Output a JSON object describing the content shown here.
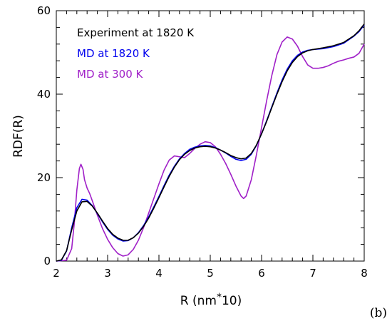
{
  "chart_data": {
    "type": "line",
    "xlabel": "R (nm",
    "xlabel_sup": "*",
    "xlabel_tail": "10)",
    "ylabel": "RDF(R)",
    "xlim": [
      2,
      8
    ],
    "ylim": [
      0,
      60
    ],
    "x_ticks": [
      2,
      3,
      4,
      5,
      6,
      7,
      8
    ],
    "y_ticks": [
      0,
      20,
      40,
      60
    ],
    "x_tick_labels": [
      "2",
      "3",
      "4",
      "5",
      "6",
      "7",
      "8"
    ],
    "y_tick_labels": [
      "0",
      "20",
      "40",
      "60"
    ],
    "grid": false,
    "legend_position": "top-left",
    "panel_label": "(b)",
    "series": [
      {
        "name": "Experiment at 1820 K",
        "color": "#000000",
        "points": [
          [
            2.0,
            0
          ],
          [
            2.1,
            0.3
          ],
          [
            2.2,
            2.5
          ],
          [
            2.3,
            7.5
          ],
          [
            2.4,
            12
          ],
          [
            2.5,
            14.2
          ],
          [
            2.6,
            14.3
          ],
          [
            2.7,
            13.2
          ],
          [
            2.8,
            11.5
          ],
          [
            2.9,
            9.6
          ],
          [
            3.0,
            7.8
          ],
          [
            3.1,
            6.4
          ],
          [
            3.2,
            5.5
          ],
          [
            3.3,
            5.0
          ],
          [
            3.4,
            5.0
          ],
          [
            3.5,
            5.6
          ],
          [
            3.6,
            6.7
          ],
          [
            3.7,
            8.3
          ],
          [
            3.8,
            10.3
          ],
          [
            3.9,
            12.7
          ],
          [
            4.0,
            15.2
          ],
          [
            4.1,
            17.8
          ],
          [
            4.2,
            20.3
          ],
          [
            4.3,
            22.5
          ],
          [
            4.4,
            24.3
          ],
          [
            4.5,
            25.6
          ],
          [
            4.6,
            26.5
          ],
          [
            4.7,
            27.1
          ],
          [
            4.8,
            27.4
          ],
          [
            4.9,
            27.5
          ],
          [
            5.0,
            27.4
          ],
          [
            5.1,
            27.1
          ],
          [
            5.2,
            26.6
          ],
          [
            5.3,
            26.0
          ],
          [
            5.4,
            25.3
          ],
          [
            5.5,
            24.8
          ],
          [
            5.6,
            24.5
          ],
          [
            5.7,
            24.7
          ],
          [
            5.8,
            25.8
          ],
          [
            5.9,
            27.8
          ],
          [
            6.0,
            30.5
          ],
          [
            6.1,
            33.5
          ],
          [
            6.2,
            36.8
          ],
          [
            6.3,
            40.0
          ],
          [
            6.4,
            43.0
          ],
          [
            6.5,
            45.6
          ],
          [
            6.6,
            47.6
          ],
          [
            6.7,
            49.0
          ],
          [
            6.8,
            49.9
          ],
          [
            6.9,
            50.4
          ],
          [
            7.0,
            50.7
          ],
          [
            7.2,
            51.1
          ],
          [
            7.4,
            51.6
          ],
          [
            7.6,
            52.4
          ],
          [
            7.8,
            54.0
          ],
          [
            7.9,
            55.2
          ],
          [
            8.0,
            56.8
          ]
        ]
      },
      {
        "name": "MD at 1820 K",
        "color": "#0000ee",
        "points": [
          [
            2.0,
            0
          ],
          [
            2.1,
            0.2
          ],
          [
            2.2,
            2.4
          ],
          [
            2.3,
            8.0
          ],
          [
            2.4,
            12.8
          ],
          [
            2.5,
            14.8
          ],
          [
            2.6,
            14.6
          ],
          [
            2.7,
            13.3
          ],
          [
            2.8,
            11.4
          ],
          [
            2.9,
            9.4
          ],
          [
            3.0,
            7.6
          ],
          [
            3.1,
            6.2
          ],
          [
            3.2,
            5.3
          ],
          [
            3.3,
            4.8
          ],
          [
            3.4,
            4.9
          ],
          [
            3.5,
            5.6
          ],
          [
            3.6,
            6.8
          ],
          [
            3.7,
            8.5
          ],
          [
            3.8,
            10.6
          ],
          [
            3.9,
            13.0
          ],
          [
            4.0,
            15.5
          ],
          [
            4.1,
            18.1
          ],
          [
            4.2,
            20.6
          ],
          [
            4.3,
            22.7
          ],
          [
            4.4,
            24.5
          ],
          [
            4.5,
            25.8
          ],
          [
            4.6,
            26.8
          ],
          [
            4.7,
            27.3
          ],
          [
            4.8,
            27.6
          ],
          [
            4.9,
            27.7
          ],
          [
            5.0,
            27.6
          ],
          [
            5.1,
            27.2
          ],
          [
            5.2,
            26.6
          ],
          [
            5.3,
            25.9
          ],
          [
            5.4,
            25.1
          ],
          [
            5.5,
            24.4
          ],
          [
            5.6,
            24.1
          ],
          [
            5.7,
            24.4
          ],
          [
            5.8,
            25.6
          ],
          [
            5.9,
            27.7
          ],
          [
            6.0,
            30.5
          ],
          [
            6.1,
            33.7
          ],
          [
            6.2,
            37.0
          ],
          [
            6.3,
            40.3
          ],
          [
            6.4,
            43.4
          ],
          [
            6.5,
            46.0
          ],
          [
            6.6,
            48.0
          ],
          [
            6.7,
            49.3
          ],
          [
            6.8,
            50.1
          ],
          [
            6.9,
            50.5
          ],
          [
            7.0,
            50.7
          ],
          [
            7.2,
            50.9
          ],
          [
            7.4,
            51.4
          ],
          [
            7.6,
            52.2
          ],
          [
            7.8,
            53.9
          ],
          [
            7.9,
            55.0
          ],
          [
            8.0,
            56.6
          ]
        ]
      },
      {
        "name": "MD at 300 K",
        "color": "#a020c8",
        "points": [
          [
            2.0,
            0
          ],
          [
            2.2,
            0.2
          ],
          [
            2.3,
            3
          ],
          [
            2.35,
            9
          ],
          [
            2.4,
            17
          ],
          [
            2.45,
            22.2
          ],
          [
            2.48,
            23.2
          ],
          [
            2.52,
            22.0
          ],
          [
            2.55,
            19.5
          ],
          [
            2.6,
            17.5
          ],
          [
            2.65,
            16.2
          ],
          [
            2.7,
            14.5
          ],
          [
            2.8,
            11.0
          ],
          [
            2.9,
            7.8
          ],
          [
            3.0,
            5.2
          ],
          [
            3.1,
            3.2
          ],
          [
            3.2,
            1.8
          ],
          [
            3.3,
            1.2
          ],
          [
            3.4,
            1.5
          ],
          [
            3.5,
            2.8
          ],
          [
            3.6,
            5.0
          ],
          [
            3.7,
            8.0
          ],
          [
            3.8,
            11.5
          ],
          [
            3.9,
            15.0
          ],
          [
            4.0,
            18.5
          ],
          [
            4.1,
            21.8
          ],
          [
            4.2,
            24.2
          ],
          [
            4.3,
            25.2
          ],
          [
            4.4,
            25.0
          ],
          [
            4.5,
            24.8
          ],
          [
            4.6,
            25.8
          ],
          [
            4.7,
            27.0
          ],
          [
            4.8,
            28.0
          ],
          [
            4.9,
            28.6
          ],
          [
            5.0,
            28.4
          ],
          [
            5.1,
            27.4
          ],
          [
            5.2,
            25.6
          ],
          [
            5.3,
            23.4
          ],
          [
            5.4,
            20.8
          ],
          [
            5.5,
            18.0
          ],
          [
            5.6,
            15.6
          ],
          [
            5.65,
            15.0
          ],
          [
            5.7,
            15.6
          ],
          [
            5.8,
            19.5
          ],
          [
            5.9,
            25.5
          ],
          [
            6.0,
            32.0
          ],
          [
            6.1,
            38.5
          ],
          [
            6.2,
            44.5
          ],
          [
            6.3,
            49.5
          ],
          [
            6.4,
            52.5
          ],
          [
            6.5,
            53.7
          ],
          [
            6.6,
            53.2
          ],
          [
            6.7,
            51.5
          ],
          [
            6.8,
            49.0
          ],
          [
            6.9,
            47.0
          ],
          [
            7.0,
            46.2
          ],
          [
            7.1,
            46.2
          ],
          [
            7.2,
            46.4
          ],
          [
            7.3,
            46.8
          ],
          [
            7.4,
            47.4
          ],
          [
            7.5,
            47.9
          ],
          [
            7.6,
            48.2
          ],
          [
            7.7,
            48.6
          ],
          [
            7.8,
            48.9
          ],
          [
            7.9,
            49.8
          ],
          [
            8.0,
            52.0
          ]
        ]
      }
    ]
  }
}
